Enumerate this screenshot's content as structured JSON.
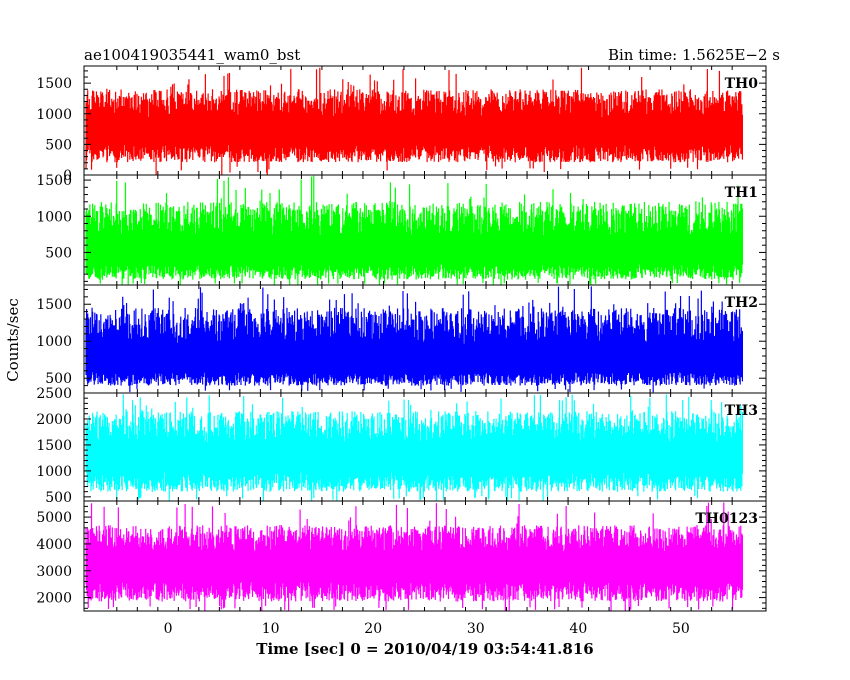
{
  "chart_data": {
    "type": "line",
    "title": "ae100419035441_wam0_bst",
    "subtitle": "Bin time: 1.5625E−2 s",
    "xlabel": "Time [sec] 0 = 2010/04/19 03:54:41.816",
    "ylabel": "Counts/sec",
    "xlim": [
      -8.2,
      58.3
    ],
    "x_range_data": [
      -8.0,
      56.0
    ],
    "x_ticks": [
      0,
      10,
      20,
      30,
      40,
      50
    ],
    "x_tick_labels": [
      "0",
      "10",
      "20",
      "30",
      "40",
      "50"
    ],
    "grid": false,
    "legend": "none",
    "panels": [
      {
        "name": "TH0",
        "color": "#ff0000",
        "ylim": [
          0,
          1780
        ],
        "y_ticks": [
          0,
          500,
          1000,
          1500
        ],
        "y_tick_labels": [
          "0",
          "500",
          "1000",
          "1500"
        ],
        "mean": 730,
        "typical_min": 150,
        "typical_max": 1400,
        "peak_max": 1760
      },
      {
        "name": "TH1",
        "color": "#00ff00",
        "ylim": [
          50,
          1570
        ],
        "y_ticks": [
          500,
          1000,
          1500
        ],
        "y_tick_labels": [
          "500",
          "1000",
          "1500"
        ],
        "mean": 520,
        "typical_min": 80,
        "typical_max": 1200,
        "peak_max": 1560
      },
      {
        "name": "TH2",
        "color": "#0000ff",
        "ylim": [
          300,
          1760
        ],
        "y_ticks": [
          500,
          1000,
          1500
        ],
        "y_tick_labels": [
          "500",
          "1000",
          "1500"
        ],
        "mean": 740,
        "typical_min": 360,
        "typical_max": 1450,
        "peak_max": 1750
      },
      {
        "name": "TH3",
        "color": "#00ffff",
        "ylim": [
          420,
          2500
        ],
        "y_ticks": [
          500,
          1000,
          1500,
          2000,
          2500
        ],
        "y_tick_labels": [
          "500",
          "1000",
          "1500",
          "2000",
          "2500"
        ],
        "mean": 1280,
        "typical_min": 520,
        "typical_max": 2150,
        "peak_max": 2480
      },
      {
        "name": "TH0123",
        "color": "#ff00ff",
        "ylim": [
          1500,
          5600
        ],
        "y_ticks": [
          2000,
          3000,
          4000,
          5000
        ],
        "y_tick_labels": [
          "2000",
          "3000",
          "4000",
          "5000"
        ],
        "mean": 3250,
        "typical_min": 1700,
        "typical_max": 4700,
        "peak_max": 5550
      }
    ]
  }
}
